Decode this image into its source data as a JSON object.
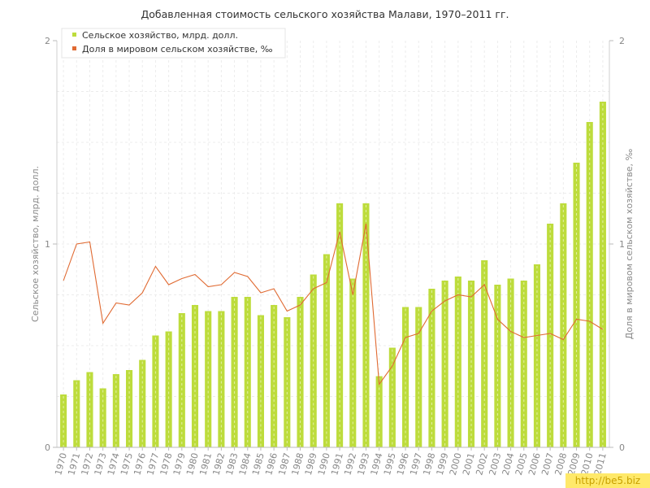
{
  "chart_data": {
    "type": "bar",
    "title": "Добавленная стоимость сельского хозяйства Малави, 1970–2011 гг.",
    "ylabel": "Сельское хозяйство, млрд. долл.",
    "ylabel_right": "Доля в мировом сельском хозяйстве, ‰",
    "ylim": [
      0,
      2
    ],
    "ylim_right": [
      0,
      2
    ],
    "y_ticks": [
      0,
      1,
      2
    ],
    "y_ticks_right": [
      0,
      1,
      2
    ],
    "grid": true,
    "legend_position": "top-left",
    "categories": [
      "1970",
      "1971",
      "1972",
      "1973",
      "1974",
      "1975",
      "1976",
      "1977",
      "1978",
      "1979",
      "1980",
      "1981",
      "1982",
      "1983",
      "1984",
      "1985",
      "1986",
      "1987",
      "1988",
      "1989",
      "1990",
      "1991",
      "1992",
      "1993",
      "1994",
      "1995",
      "1996",
      "1997",
      "1998",
      "1999",
      "2000",
      "2001",
      "2002",
      "2003",
      "2004",
      "2005",
      "2006",
      "2007",
      "2008",
      "2009",
      "2010",
      "2011"
    ],
    "series": [
      {
        "name": "Сельское хозяйство, млрд. долл.",
        "type": "bar",
        "axis": "left",
        "color": "#bddc3c",
        "values": [
          0.26,
          0.33,
          0.37,
          0.29,
          0.36,
          0.38,
          0.43,
          0.55,
          0.57,
          0.66,
          0.7,
          0.67,
          0.67,
          0.74,
          0.74,
          0.65,
          0.7,
          0.64,
          0.74,
          0.85,
          0.95,
          1.2,
          0.83,
          1.2,
          0.35,
          0.49,
          0.69,
          0.69,
          0.78,
          0.82,
          0.84,
          0.82,
          0.92,
          0.8,
          0.83,
          0.82,
          0.9,
          1.1,
          1.2,
          1.4,
          1.6,
          1.7
        ]
      },
      {
        "name": "Доля в мировом сельском хозяйстве, ‰",
        "type": "line",
        "axis": "right",
        "color": "#e06a32",
        "values": [
          0.82,
          1.0,
          1.01,
          0.61,
          0.71,
          0.7,
          0.76,
          0.89,
          0.8,
          0.83,
          0.85,
          0.79,
          0.8,
          0.86,
          0.84,
          0.76,
          0.78,
          0.67,
          0.7,
          0.78,
          0.81,
          1.06,
          0.75,
          1.1,
          0.31,
          0.4,
          0.54,
          0.56,
          0.67,
          0.72,
          0.75,
          0.74,
          0.8,
          0.63,
          0.57,
          0.54,
          0.55,
          0.56,
          0.53,
          0.63,
          0.62,
          0.58
        ]
      }
    ]
  },
  "watermark": "http://be5.biz"
}
